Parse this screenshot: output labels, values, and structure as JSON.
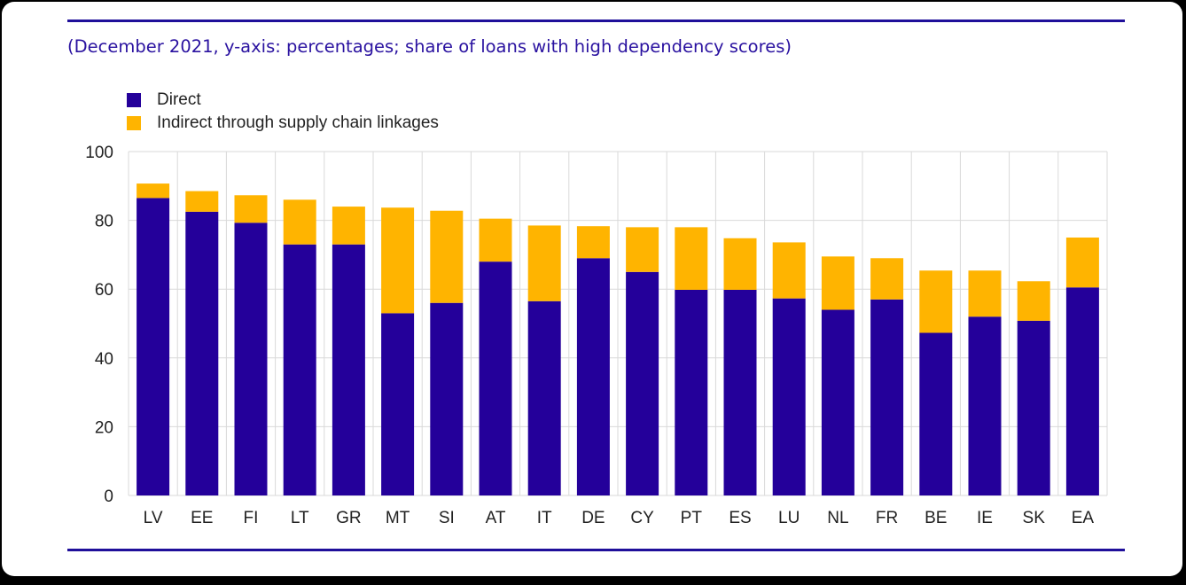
{
  "subtitle": "(December 2021, y-axis: percentages; share of loans with high dependency scores)",
  "colors": {
    "direct": "#24009a",
    "indirect": "#ffb400",
    "grid": "#d9d9d9",
    "rule": "#1f0f9a"
  },
  "chart_data": {
    "type": "bar",
    "stacked": true,
    "categories": [
      "LV",
      "EE",
      "FI",
      "LT",
      "GR",
      "MT",
      "SI",
      "AT",
      "IT",
      "DE",
      "CY",
      "PT",
      "ES",
      "LU",
      "NL",
      "FR",
      "BE",
      "IE",
      "SK",
      "EA"
    ],
    "series": [
      {
        "name": "Direct",
        "values": [
          86.5,
          82.5,
          79.3,
          73.0,
          73.0,
          53.0,
          56.0,
          68.0,
          56.5,
          69.0,
          65.0,
          59.8,
          59.8,
          57.3,
          54.0,
          57.0,
          47.3,
          52.0,
          50.8,
          60.5
        ]
      },
      {
        "name": "Indirect through supply chain linkages",
        "values": [
          4.2,
          6.0,
          8.0,
          13.0,
          11.0,
          30.7,
          26.8,
          12.5,
          22.0,
          9.3,
          13.0,
          18.2,
          15.0,
          16.3,
          15.5,
          12.0,
          18.1,
          13.4,
          11.5,
          14.5
        ]
      }
    ],
    "yticks": [
      0,
      20,
      40,
      60,
      80,
      100
    ],
    "ylim": [
      0,
      100
    ],
    "grid": true,
    "legend": "top-left"
  }
}
